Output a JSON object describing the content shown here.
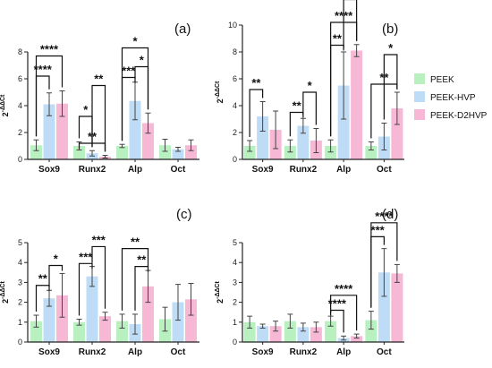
{
  "chart_data": [
    {
      "type": "bar",
      "panel_label": "(a)",
      "ylabel": "2-ΔΔCt",
      "ylim": [
        0,
        8
      ],
      "yticks": [
        0,
        2,
        4,
        6,
        8
      ],
      "categories": [
        "Sox9",
        "Runx2",
        "Alp",
        "Oct"
      ],
      "series": [
        {
          "name": "PEEK",
          "values": [
            1.05,
            1.0,
            1.0,
            1.05
          ],
          "errors": [
            0.4,
            0.3,
            0.12,
            0.45
          ]
        },
        {
          "name": "PEEK-HVP",
          "values": [
            4.1,
            0.45,
            4.35,
            0.75
          ],
          "errors": [
            0.85,
            0.2,
            1.4,
            0.15
          ]
        },
        {
          "name": "PEEK-D2HVP",
          "values": [
            4.15,
            0.2,
            2.7,
            1.05
          ],
          "errors": [
            0.95,
            0.1,
            0.75,
            0.4
          ]
        }
      ],
      "significance": [
        {
          "label": "****",
          "a": [
            0,
            0
          ],
          "b": [
            0,
            1
          ],
          "y": 6.2
        },
        {
          "label": "****",
          "a": [
            0,
            0
          ],
          "b": [
            0,
            2
          ],
          "y": 7.7
        },
        {
          "label": "*",
          "a": [
            1,
            0
          ],
          "b": [
            1,
            1
          ],
          "y": 3.2
        },
        {
          "label": "**",
          "a": [
            1,
            0
          ],
          "b": [
            1,
            2
          ],
          "y": 1.2
        },
        {
          "label": "**",
          "a": [
            1,
            1
          ],
          "b": [
            1,
            2
          ],
          "y": 5.5
        },
        {
          "label": "***",
          "a": [
            2,
            0
          ],
          "b": [
            2,
            1
          ],
          "y": 6.1
        },
        {
          "label": "*",
          "a": [
            2,
            0
          ],
          "b": [
            2,
            2
          ],
          "y": 8.3
        },
        {
          "label": "*",
          "a": [
            2,
            1
          ],
          "b": [
            2,
            2
          ],
          "y": 6.9
        }
      ]
    },
    {
      "type": "bar",
      "panel_label": "(b)",
      "ylabel": "2-ΔΔCt",
      "ylim": [
        0,
        10
      ],
      "yticks": [
        0,
        2,
        4,
        6,
        8,
        10
      ],
      "categories": [
        "Sox9",
        "Runx2",
        "Alp",
        "Oct"
      ],
      "series": [
        {
          "name": "PEEK",
          "values": [
            1.0,
            1.0,
            1.0,
            1.0
          ],
          "errors": [
            0.4,
            0.45,
            0.45,
            0.3
          ]
        },
        {
          "name": "PEEK-HVP",
          "values": [
            3.2,
            2.5,
            5.5,
            1.7
          ],
          "errors": [
            1.1,
            0.55,
            2.5,
            1.0
          ]
        },
        {
          "name": "PEEK-D2HVP",
          "values": [
            2.2,
            1.4,
            8.1,
            3.8
          ],
          "errors": [
            1.4,
            0.9,
            0.45,
            1.2
          ]
        }
      ],
      "significance": [
        {
          "label": "**",
          "a": [
            0,
            0
          ],
          "b": [
            0,
            1
          ],
          "y": 5.2
        },
        {
          "label": "**",
          "a": [
            1,
            0
          ],
          "b": [
            1,
            1
          ],
          "y": 3.5
        },
        {
          "label": "*",
          "a": [
            1,
            1
          ],
          "b": [
            1,
            2
          ],
          "y": 5.0
        },
        {
          "label": "**",
          "a": [
            2,
            0
          ],
          "b": [
            2,
            1
          ],
          "y": 8.5
        },
        {
          "label": "****",
          "a": [
            2,
            0
          ],
          "b": [
            2,
            2
          ],
          "y": 10.2
        },
        {
          "label": "*",
          "a": [
            2,
            1
          ],
          "b": [
            2,
            2
          ],
          "y": 11.9
        },
        {
          "label": "**",
          "a": [
            3,
            0
          ],
          "b": [
            3,
            2
          ],
          "y": 5.6
        },
        {
          "label": "*",
          "a": [
            3,
            1
          ],
          "b": [
            3,
            2
          ],
          "y": 7.8
        }
      ]
    },
    {
      "type": "bar",
      "panel_label": "(c)",
      "ylabel": "2-ΔΔCt",
      "ylim": [
        0,
        5
      ],
      "yticks": [
        0,
        1,
        2,
        3,
        4,
        5
      ],
      "categories": [
        "Sox9",
        "Runx2",
        "Alp",
        "Oct"
      ],
      "series": [
        {
          "name": "PEEK",
          "values": [
            1.05,
            1.0,
            1.05,
            1.15
          ],
          "errors": [
            0.3,
            0.15,
            0.35,
            0.6
          ]
        },
        {
          "name": "PEEK-HVP",
          "values": [
            2.2,
            3.3,
            0.9,
            2.0
          ],
          "errors": [
            0.4,
            0.5,
            0.5,
            0.9
          ]
        },
        {
          "name": "PEEK-D2HVP",
          "values": [
            2.35,
            1.3,
            2.8,
            2.15
          ],
          "errors": [
            1.1,
            0.2,
            0.8,
            0.8
          ]
        }
      ],
      "significance": [
        {
          "label": "**",
          "a": [
            0,
            0
          ],
          "b": [
            0,
            1
          ],
          "y": 2.85
        },
        {
          "label": "*",
          "a": [
            0,
            1
          ],
          "b": [
            0,
            2
          ],
          "y": 3.85
        },
        {
          "label": "***",
          "a": [
            1,
            0
          ],
          "b": [
            1,
            1
          ],
          "y": 3.95
        },
        {
          "label": "***",
          "a": [
            1,
            1
          ],
          "b": [
            1,
            2
          ],
          "y": 4.8
        },
        {
          "label": "**",
          "a": [
            2,
            1
          ],
          "b": [
            2,
            2
          ],
          "y": 3.8
        },
        {
          "label": "**",
          "a": [
            2,
            0
          ],
          "b": [
            2,
            2
          ],
          "y": 4.7
        }
      ]
    },
    {
      "type": "bar",
      "panel_label": "(d)",
      "ylabel": "2-ΔΔCt",
      "ylim": [
        0,
        5
      ],
      "yticks": [
        0,
        1,
        2,
        3,
        4,
        5
      ],
      "categories": [
        "Sox9",
        "Runx2",
        "Alp",
        "Oct"
      ],
      "series": [
        {
          "name": "PEEK",
          "values": [
            1.0,
            1.05,
            1.05,
            1.1
          ],
          "errors": [
            0.3,
            0.35,
            0.25,
            0.45
          ]
        },
        {
          "name": "PEEK-HVP",
          "values": [
            0.8,
            0.75,
            0.2,
            3.5
          ],
          "errors": [
            0.1,
            0.2,
            0.1,
            1.2
          ]
        },
        {
          "name": "PEEK-D2HVP",
          "values": [
            0.8,
            0.75,
            0.3,
            3.45
          ],
          "errors": [
            0.25,
            0.25,
            0.1,
            0.45
          ]
        }
      ],
      "significance": [
        {
          "label": "****",
          "a": [
            2,
            0
          ],
          "b": [
            2,
            1
          ],
          "y": 1.6
        },
        {
          "label": "****",
          "a": [
            2,
            0
          ],
          "b": [
            2,
            2
          ],
          "y": 2.35
        },
        {
          "label": "***",
          "a": [
            3,
            0
          ],
          "b": [
            3,
            1
          ],
          "y": 5.3
        },
        {
          "label": "****",
          "a": [
            3,
            0
          ],
          "b": [
            3,
            2
          ],
          "y": 6.0
        }
      ]
    }
  ],
  "legend": [
    {
      "label": "PEEK",
      "color": "#b8f0c0"
    },
    {
      "label": "PEEK-HVP",
      "color": "#bfdcf7"
    },
    {
      "label": "PEEK-D2HVP",
      "color": "#f7b8d5"
    }
  ],
  "colors": {
    "bars": [
      "#b8f0c0",
      "#bfdcf7",
      "#f7b8d5"
    ],
    "error_bar": "#444444",
    "axis": "#222222"
  }
}
